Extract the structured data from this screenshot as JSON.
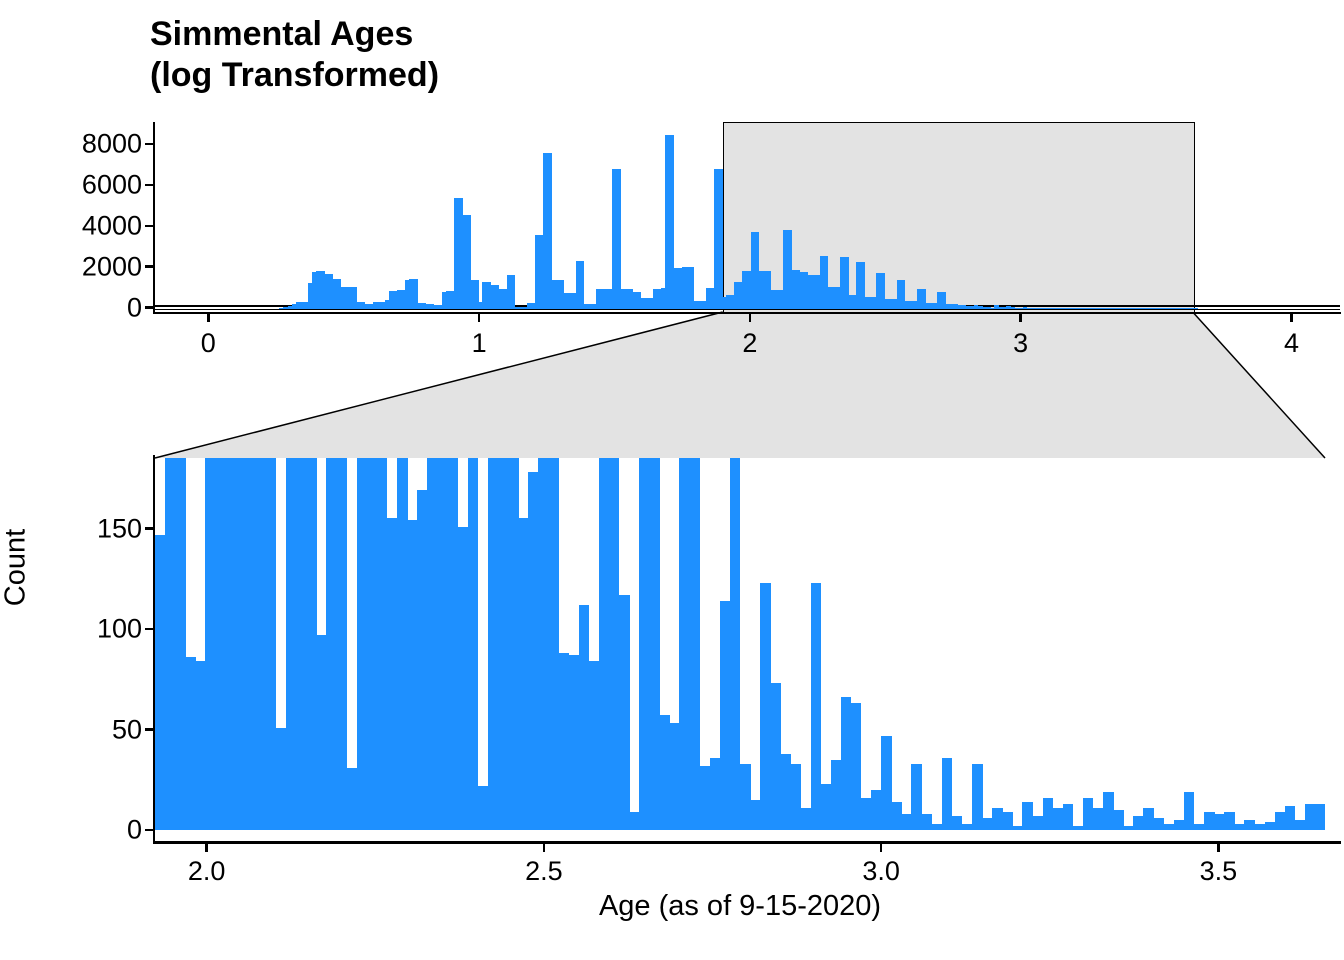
{
  "title": {
    "line1": "Simmental Ages",
    "line2": "(log Transformed)"
  },
  "colors": {
    "bar": "#1E90FF",
    "zoom_shade": "#E3E3E3",
    "axis": "#000000",
    "text": "#000000"
  },
  "overview_axis": {
    "x_tick_labels": [
      "0",
      "1",
      "2",
      "3",
      "4"
    ],
    "y_tick_labels": [
      "0",
      "2000",
      "4000",
      "6000",
      "8000"
    ]
  },
  "zoom_axis": {
    "x_tick_labels": [
      "2.0",
      "2.5",
      "3.0",
      "3.5"
    ],
    "y_tick_labels": [
      "0",
      "50",
      "100",
      "150"
    ],
    "xlabel": "Age (as of 9-15-2020)",
    "ylabel": "Count"
  },
  "chart_data": [
    {
      "type": "bar",
      "subtype": "histogram-overview-panel",
      "title": "Simmental Ages (log Transformed)",
      "xlabel": "",
      "ylabel": "",
      "bin_width": 0.015,
      "x_ticks": [
        0,
        1,
        2,
        3,
        4
      ],
      "y_ticks": [
        0,
        2000,
        4000,
        6000,
        8000
      ],
      "xlim": [
        -0.2,
        4.12
      ],
      "ylim": [
        0,
        9100
      ],
      "grid": "off",
      "zoom_indicator_region": {
        "xlim": [
          1.923,
          3.658
        ],
        "ylim": [
          0,
          186
        ]
      },
      "bins_v_count": [
        [
          0.2625,
          60
        ],
        [
          0.2775,
          110
        ],
        [
          0.2925,
          170
        ],
        [
          0.3075,
          250
        ],
        [
          0.3225,
          330
        ],
        [
          0.3375,
          360
        ],
        [
          0.3525,
          360
        ],
        [
          0.3675,
          1280
        ],
        [
          0.3825,
          1815
        ],
        [
          0.3975,
          1863
        ],
        [
          0.4125,
          1863
        ],
        [
          0.4275,
          1690
        ],
        [
          0.4425,
          1690
        ],
        [
          0.4575,
          1450
        ],
        [
          0.4725,
          1450
        ],
        [
          0.4875,
          1085
        ],
        [
          0.5025,
          1085
        ],
        [
          0.5175,
          1085
        ],
        [
          0.5325,
          1085
        ],
        [
          0.5475,
          340
        ],
        [
          0.5625,
          340
        ],
        [
          0.5775,
          250
        ],
        [
          0.5925,
          250
        ],
        [
          0.6075,
          355
        ],
        [
          0.6225,
          355
        ],
        [
          0.6375,
          355
        ],
        [
          0.6525,
          420
        ],
        [
          0.6675,
          890
        ],
        [
          0.6825,
          890
        ],
        [
          0.6975,
          910
        ],
        [
          0.7125,
          910
        ],
        [
          0.7275,
          1410
        ],
        [
          0.7425,
          1450
        ],
        [
          0.7575,
          1450
        ],
        [
          0.7725,
          290
        ],
        [
          0.7875,
          290
        ],
        [
          0.8025,
          225
        ],
        [
          0.8175,
          225
        ],
        [
          0.8325,
          180
        ],
        [
          0.8475,
          180
        ],
        [
          0.8625,
          840
        ],
        [
          0.8775,
          880
        ],
        [
          0.8925,
          880
        ],
        [
          0.9075,
          5420
        ],
        [
          0.9225,
          5420
        ],
        [
          0.9375,
          4620
        ],
        [
          0.9525,
          4620
        ],
        [
          0.9675,
          1443
        ],
        [
          0.9825,
          1443
        ],
        [
          0.9975,
          355
        ],
        [
          1.0125,
          1300
        ],
        [
          1.0275,
          1300
        ],
        [
          1.0425,
          1200
        ],
        [
          1.0575,
          1200
        ],
        [
          1.0725,
          1004
        ],
        [
          1.0875,
          1004
        ],
        [
          1.1025,
          1652
        ],
        [
          1.1175,
          1652
        ],
        [
          1.1325,
          110
        ],
        [
          1.1475,
          110
        ],
        [
          1.1625,
          110
        ],
        [
          1.1775,
          277
        ],
        [
          1.1925,
          277
        ],
        [
          1.2075,
          3645
        ],
        [
          1.2225,
          3645
        ],
        [
          1.2375,
          7616
        ],
        [
          1.2525,
          7616
        ],
        [
          1.2675,
          1410
        ],
        [
          1.2825,
          1410
        ],
        [
          1.2975,
          1410
        ],
        [
          1.3125,
          763
        ],
        [
          1.3275,
          763
        ],
        [
          1.3425,
          763
        ],
        [
          1.3575,
          2333
        ],
        [
          1.3725,
          2333
        ],
        [
          1.3875,
          266
        ],
        [
          1.4025,
          266
        ],
        [
          1.4175,
          266
        ],
        [
          1.4325,
          970
        ],
        [
          1.4475,
          970
        ],
        [
          1.4625,
          970
        ],
        [
          1.4775,
          970
        ],
        [
          1.4925,
          6868
        ],
        [
          1.5075,
          6868
        ],
        [
          1.5225,
          1000
        ],
        [
          1.5375,
          1000
        ],
        [
          1.5525,
          1000
        ],
        [
          1.5675,
          825
        ],
        [
          1.5825,
          825
        ],
        [
          1.5975,
          520
        ],
        [
          1.6125,
          520
        ],
        [
          1.6275,
          520
        ],
        [
          1.6425,
          1000
        ],
        [
          1.6575,
          1000
        ],
        [
          1.6725,
          1050
        ],
        [
          1.6875,
          8539
        ],
        [
          1.7025,
          8539
        ],
        [
          1.7175,
          2008
        ],
        [
          1.7325,
          2008
        ],
        [
          1.7475,
          2050
        ],
        [
          1.7625,
          2050
        ],
        [
          1.7775,
          2050
        ],
        [
          1.7925,
          374
        ],
        [
          1.8075,
          374
        ],
        [
          1.8225,
          374
        ],
        [
          1.8375,
          1006
        ],
        [
          1.8525,
          1006
        ],
        [
          1.8675,
          6868
        ],
        [
          1.8825,
          6868
        ],
        [
          1.8975,
          600
        ],
        [
          1.9125,
          680
        ],
        [
          1.9275,
          680
        ],
        [
          1.9425,
          1327
        ],
        [
          1.9575,
          1327
        ],
        [
          1.9725,
          1862
        ],
        [
          1.9875,
          1862
        ],
        [
          2.0025,
          3758
        ],
        [
          2.0175,
          3758
        ],
        [
          2.0325,
          1840
        ],
        [
          2.0475,
          1840
        ],
        [
          2.0625,
          1840
        ],
        [
          2.0775,
          930
        ],
        [
          2.0925,
          930
        ],
        [
          2.1075,
          930
        ],
        [
          2.1225,
          3890
        ],
        [
          2.1375,
          3890
        ],
        [
          2.1525,
          1890
        ],
        [
          2.1675,
          1890
        ],
        [
          2.1825,
          1790
        ],
        [
          2.1975,
          1790
        ],
        [
          2.2125,
          1650
        ],
        [
          2.2275,
          1650
        ],
        [
          2.2425,
          1650
        ],
        [
          2.2575,
          2620
        ],
        [
          2.2725,
          2620
        ],
        [
          2.2875,
          1090
        ],
        [
          2.3025,
          1090
        ],
        [
          2.3175,
          1090
        ],
        [
          2.3325,
          2540
        ],
        [
          2.3475,
          2540
        ],
        [
          2.3625,
          700
        ],
        [
          2.3775,
          700
        ],
        [
          2.3925,
          2299
        ],
        [
          2.4075,
          2299
        ],
        [
          2.4225,
          600
        ],
        [
          2.4375,
          600
        ],
        [
          2.4525,
          600
        ],
        [
          2.4675,
          1765
        ],
        [
          2.4825,
          1765
        ],
        [
          2.4975,
          500
        ],
        [
          2.5125,
          500
        ],
        [
          2.5275,
          500
        ],
        [
          2.5425,
          1408
        ],
        [
          2.5575,
          1408
        ],
        [
          2.5725,
          400
        ],
        [
          2.5875,
          400
        ],
        [
          2.6025,
          400
        ],
        [
          2.6175,
          1003
        ],
        [
          2.6325,
          1003
        ],
        [
          2.6475,
          300
        ],
        [
          2.6625,
          300
        ],
        [
          2.6775,
          300
        ],
        [
          2.6925,
          841
        ],
        [
          2.7075,
          841
        ],
        [
          2.7225,
          250
        ],
        [
          2.7375,
          250
        ],
        [
          2.7525,
          250
        ],
        [
          2.7675,
          200
        ],
        [
          2.7825,
          200
        ],
        [
          2.7975,
          150
        ],
        [
          2.8125,
          150
        ],
        [
          2.8275,
          200
        ],
        [
          2.8425,
          150
        ],
        [
          2.8575,
          100
        ],
        [
          2.8725,
          100
        ],
        [
          2.8875,
          60
        ],
        [
          2.9025,
          200
        ],
        [
          2.9175,
          100
        ],
        [
          2.9325,
          80
        ],
        [
          2.9475,
          145
        ],
        [
          2.9625,
          100
        ],
        [
          2.9775,
          50
        ],
        [
          2.9925,
          60
        ],
        [
          3.0075,
          90
        ],
        [
          3.0225,
          40
        ],
        [
          3.0375,
          30
        ],
        [
          3.0525,
          70
        ],
        [
          3.0675,
          30
        ],
        [
          3.0825,
          20
        ],
        [
          3.0975,
          70
        ],
        [
          3.1125,
          25
        ],
        [
          3.1275,
          20
        ],
        [
          3.1425,
          65
        ],
        [
          3.1575,
          20
        ],
        [
          3.1725,
          30
        ],
        [
          3.1875,
          25
        ],
        [
          3.2025,
          15
        ],
        [
          3.2175,
          35
        ],
        [
          3.2325,
          20
        ],
        [
          3.2475,
          35
        ],
        [
          3.2625,
          30
        ],
        [
          3.2775,
          30
        ],
        [
          3.2925,
          15
        ],
        [
          3.3075,
          40
        ],
        [
          3.3225,
          25
        ],
        [
          3.3375,
          45
        ],
        [
          3.3525,
          25
        ],
        [
          3.3675,
          15
        ],
        [
          3.3825,
          25
        ],
        [
          3.3975,
          30
        ],
        [
          3.4125,
          20
        ],
        [
          3.4275,
          15
        ],
        [
          3.4425,
          20
        ],
        [
          3.4575,
          50
        ],
        [
          3.4725,
          15
        ],
        [
          3.4875,
          30
        ],
        [
          3.5025,
          25
        ],
        [
          3.5175,
          30
        ],
        [
          3.5325,
          15
        ],
        [
          3.5475,
          20
        ],
        [
          3.5625,
          15
        ],
        [
          3.5775,
          20
        ],
        [
          3.5925,
          30
        ],
        [
          3.6075,
          35
        ],
        [
          3.6225,
          20
        ],
        [
          3.6375,
          40
        ]
      ]
    },
    {
      "type": "bar",
      "subtype": "histogram-zoom-panel",
      "xlabel": "Age (as of 9-15-2020)",
      "ylabel": "Count",
      "bin_width": 0.015,
      "bin_start": 1.9235,
      "x_ticks": [
        2.0,
        2.5,
        3.0,
        3.5
      ],
      "y_ticks": [
        0,
        50,
        100,
        150
      ],
      "xlim": [
        1.923,
        3.658
      ],
      "ylim": [
        0,
        186
      ],
      "grid": "off",
      "note": "values of 190 are off-scale bars clipped at the panel top",
      "counts": [
        147,
        190,
        190,
        86,
        84,
        190,
        190,
        190,
        190,
        190,
        190,
        190,
        51,
        190,
        190,
        190,
        97,
        190,
        190,
        31,
        190,
        190,
        190,
        155,
        190,
        154,
        169,
        190,
        190,
        190,
        151,
        190,
        22,
        190,
        190,
        190,
        155,
        178,
        190,
        190,
        88,
        87,
        112,
        84,
        190,
        190,
        117,
        9,
        190,
        190,
        57,
        53,
        190,
        190,
        32,
        36,
        114,
        190,
        33,
        15,
        123,
        73,
        38,
        33,
        11,
        123,
        23,
        35,
        66,
        63,
        16,
        20,
        47,
        14,
        8,
        33,
        8,
        3,
        36,
        7,
        3,
        33,
        6,
        11,
        9,
        2,
        14,
        7,
        16,
        11,
        13,
        2,
        16,
        11,
        19,
        10,
        2,
        7,
        11,
        6,
        3,
        5,
        19,
        3,
        9,
        8,
        9,
        3,
        5,
        3,
        4,
        9,
        12,
        5,
        13,
        13
      ]
    }
  ]
}
